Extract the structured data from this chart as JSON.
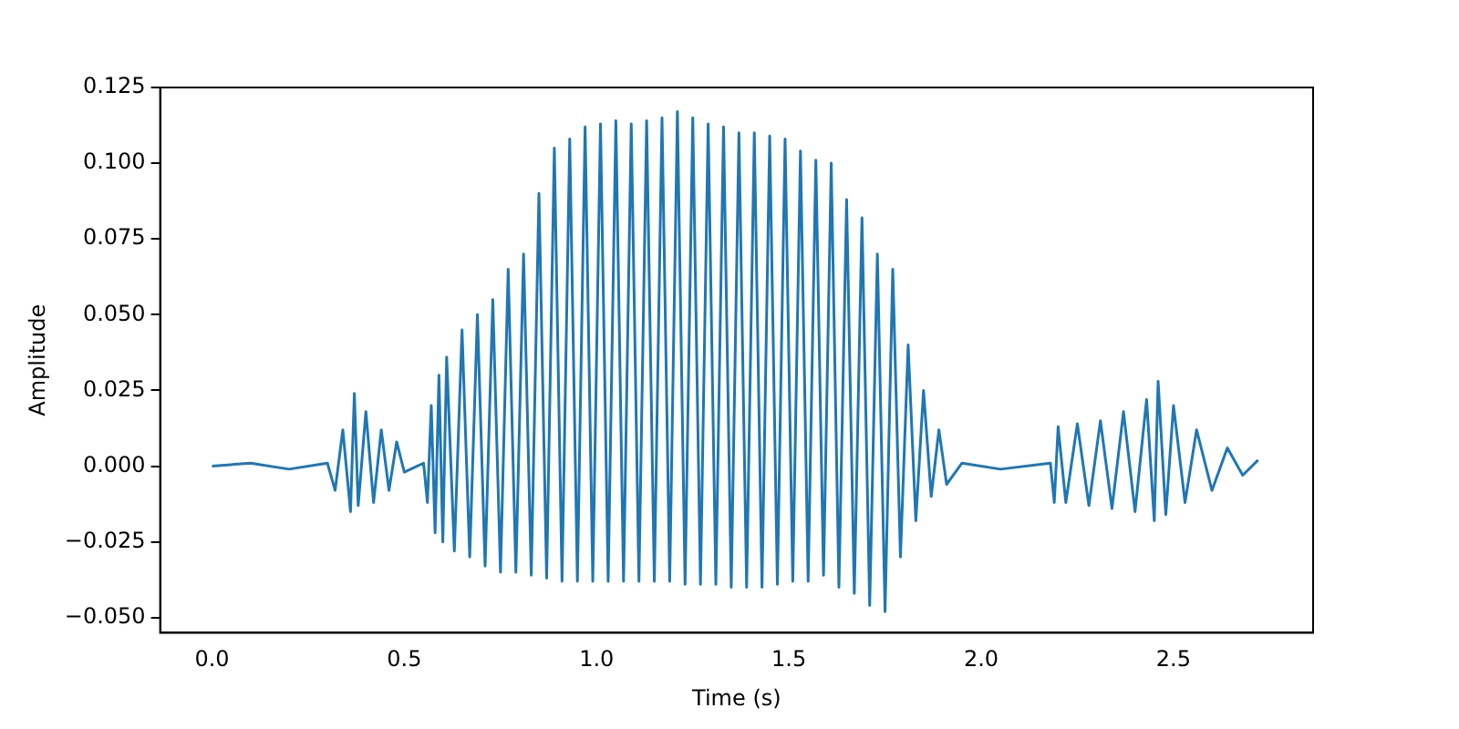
{
  "chart_data": {
    "type": "line",
    "xlabel": "Time (s)",
    "ylabel": "Amplitude",
    "marker": "none",
    "line_style": "solid",
    "x": [
      0,
      0.1,
      0.2,
      0.3,
      0.32,
      0.34,
      0.36,
      0.37,
      0.38,
      0.4,
      0.42,
      0.44,
      0.46,
      0.48,
      0.5,
      0.55,
      0.56,
      0.57,
      0.58,
      0.59,
      0.6,
      0.61,
      0.63,
      0.65,
      0.67,
      0.69,
      0.71,
      0.73,
      0.75,
      0.77,
      0.79,
      0.81,
      0.83,
      0.85,
      0.87,
      0.89,
      0.91,
      0.93,
      0.95,
      0.97,
      0.99,
      1.01,
      1.03,
      1.05,
      1.07,
      1.09,
      1.11,
      1.13,
      1.15,
      1.17,
      1.19,
      1.21,
      1.23,
      1.25,
      1.27,
      1.29,
      1.31,
      1.33,
      1.35,
      1.37,
      1.39,
      1.41,
      1.43,
      1.45,
      1.47,
      1.49,
      1.51,
      1.53,
      1.55,
      1.57,
      1.59,
      1.61,
      1.63,
      1.65,
      1.67,
      1.69,
      1.71,
      1.73,
      1.75,
      1.77,
      1.79,
      1.81,
      1.83,
      1.85,
      1.87,
      1.89,
      1.91,
      1.95,
      2.05,
      2.18,
      2.19,
      2.2,
      2.22,
      2.25,
      2.28,
      2.31,
      2.34,
      2.37,
      2.4,
      2.43,
      2.45,
      2.46,
      2.48,
      2.5,
      2.53,
      2.56,
      2.6,
      2.64,
      2.68,
      2.72
    ],
    "series": [
      {
        "color": "#1f77b4",
        "values": [
          0,
          0.001,
          -0.001,
          0.001,
          -0.008,
          0.012,
          -0.015,
          0.024,
          -0.013,
          0.018,
          -0.012,
          0.012,
          -0.008,
          0.008,
          -0.002,
          0.001,
          -0.012,
          0.02,
          -0.022,
          0.03,
          -0.025,
          0.036,
          -0.028,
          0.045,
          -0.03,
          0.05,
          -0.033,
          0.055,
          -0.035,
          0.065,
          -0.035,
          0.07,
          -0.036,
          0.09,
          -0.037,
          0.105,
          -0.038,
          0.108,
          -0.038,
          0.112,
          -0.038,
          0.113,
          -0.038,
          0.114,
          -0.038,
          0.113,
          -0.038,
          0.114,
          -0.038,
          0.115,
          -0.038,
          0.117,
          -0.039,
          0.115,
          -0.039,
          0.113,
          -0.039,
          0.112,
          -0.04,
          0.11,
          -0.04,
          0.11,
          -0.04,
          0.109,
          -0.039,
          0.108,
          -0.038,
          0.104,
          -0.038,
          0.101,
          -0.036,
          0.1,
          -0.04,
          0.088,
          -0.042,
          0.082,
          -0.046,
          0.07,
          -0.048,
          0.065,
          -0.03,
          0.04,
          -0.018,
          0.025,
          -0.01,
          0.012,
          -0.006,
          0.001,
          -0.001,
          0.001,
          -0.012,
          0.013,
          -0.012,
          0.014,
          -0.013,
          0.015,
          -0.014,
          0.018,
          -0.015,
          0.022,
          -0.018,
          0.028,
          -0.016,
          0.02,
          -0.012,
          0.012,
          -0.008,
          0.006,
          -0.003,
          0.002
        ]
      }
    ],
    "xlim": [
      -0.135,
      2.863
    ],
    "ylim": [
      -0.055,
      0.125
    ],
    "xticks": [
      {
        "value": 0,
        "label": "0.0"
      },
      {
        "value": 0.5,
        "label": "0.5"
      },
      {
        "value": 1,
        "label": "1.0"
      },
      {
        "value": 1.5,
        "label": "1.5"
      },
      {
        "value": 2,
        "label": "2.0"
      },
      {
        "value": 2.5,
        "label": "2.5"
      }
    ],
    "yticks": [
      {
        "value": -0.05,
        "label": "−0.050"
      },
      {
        "value": -0.025,
        "label": "−0.025"
      },
      {
        "value": 0,
        "label": "0.000"
      },
      {
        "value": 0.025,
        "label": "0.025"
      },
      {
        "value": 0.05,
        "label": "0.050"
      },
      {
        "value": 0.075,
        "label": "0.075"
      },
      {
        "value": 0.1,
        "label": "0.100"
      },
      {
        "value": 0.125,
        "label": "0.125"
      }
    ]
  }
}
